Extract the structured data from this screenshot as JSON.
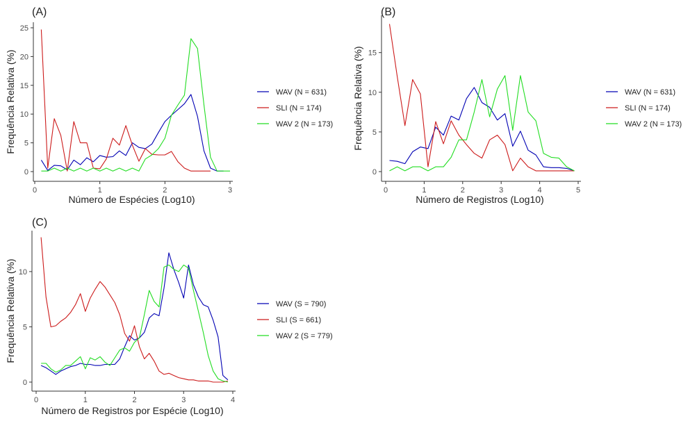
{
  "colors": {
    "wav": "#0000b3",
    "sli": "#cc1a1a",
    "wav2": "#22dd22",
    "axis": "#333333"
  },
  "chart_data": [
    {
      "type": "line",
      "panel_label": "(A)",
      "xlabel": "Número de Espécies (Log10)",
      "ylabel": "Frequência Relativa (%)",
      "xlim": [
        0,
        3
      ],
      "ylim": [
        0,
        25
      ],
      "xticks": [
        0,
        1,
        2,
        3
      ],
      "yticks": [
        0,
        5,
        10,
        15,
        20,
        25
      ],
      "legend_position": "right",
      "series": [
        {
          "name": "WAV (N = 631)",
          "color": "wav",
          "x": [
            0.1,
            0.2,
            0.3,
            0.4,
            0.5,
            0.6,
            0.7,
            0.8,
            0.9,
            1.0,
            1.1,
            1.2,
            1.3,
            1.4,
            1.5,
            1.6,
            1.7,
            1.8,
            1.9,
            2.0,
            2.1,
            2.2,
            2.3,
            2.4,
            2.5,
            2.6,
            2.7,
            2.8,
            2.9
          ],
          "y": [
            2.0,
            0.2,
            1.1,
            1.0,
            0.3,
            2.0,
            1.2,
            2.4,
            1.7,
            2.8,
            2.5,
            2.6,
            3.6,
            2.8,
            5.0,
            4.2,
            4.0,
            4.8,
            6.8,
            8.7,
            9.8,
            10.8,
            11.8,
            13.4,
            9.6,
            3.6,
            0.6,
            0.1,
            0.1
          ]
        },
        {
          "name": "SLI (N = 174)",
          "color": "sli",
          "x": [
            0.1,
            0.2,
            0.3,
            0.4,
            0.5,
            0.6,
            0.7,
            0.8,
            0.9,
            1.0,
            1.1,
            1.2,
            1.3,
            1.4,
            1.5,
            1.6,
            1.7,
            1.8,
            1.9,
            2.0,
            2.1,
            2.2,
            2.3,
            2.4,
            2.5,
            2.6,
            2.7
          ],
          "y": [
            24.7,
            0.6,
            9.2,
            6.3,
            0.1,
            8.7,
            5.0,
            5.0,
            0.6,
            0.5,
            2.2,
            5.8,
            4.6,
            8.0,
            4.6,
            1.8,
            4.0,
            3.0,
            2.9,
            2.9,
            3.5,
            1.7,
            0.6,
            0.1,
            0.1,
            0.1,
            0.1
          ]
        },
        {
          "name": "WAV 2 (N = 173)",
          "color": "wav2",
          "x": [
            0.1,
            0.2,
            0.3,
            0.4,
            0.5,
            0.6,
            0.7,
            0.8,
            0.9,
            1.0,
            1.1,
            1.2,
            1.3,
            1.4,
            1.5,
            1.6,
            1.7,
            1.8,
            1.9,
            2.0,
            2.1,
            2.2,
            2.3,
            2.4,
            2.5,
            2.6,
            2.7,
            2.8,
            2.9,
            3.0
          ],
          "y": [
            0.1,
            0.1,
            0.6,
            0.1,
            0.6,
            0.1,
            0.6,
            0.1,
            0.6,
            0.1,
            0.6,
            0.1,
            0.6,
            0.1,
            0.6,
            0.1,
            2.2,
            2.9,
            4.0,
            5.8,
            9.8,
            11.6,
            13.3,
            23.1,
            21.4,
            11.6,
            2.5,
            0.1,
            0.1,
            0.1
          ]
        }
      ]
    },
    {
      "type": "line",
      "panel_label": "(B)",
      "xlabel": "Número de Registros (Log10)",
      "ylabel": "Frequência Relativa (%)",
      "xlim": [
        0,
        5
      ],
      "ylim": [
        0,
        19
      ],
      "xticks": [
        0,
        1,
        2,
        3,
        4,
        5
      ],
      "yticks": [
        0,
        5,
        10,
        15
      ],
      "legend_position": "right",
      "series": [
        {
          "name": "WAV (N = 631)",
          "color": "wav",
          "x": [
            0.1,
            0.3,
            0.5,
            0.7,
            0.9,
            1.1,
            1.3,
            1.5,
            1.7,
            1.9,
            2.1,
            2.3,
            2.5,
            2.7,
            2.9,
            3.1,
            3.3,
            3.5,
            3.7,
            3.9,
            4.1,
            4.3,
            4.5,
            4.7,
            4.9
          ],
          "y": [
            1.4,
            1.3,
            1.0,
            2.5,
            3.1,
            2.9,
            5.6,
            4.6,
            7.0,
            6.5,
            9.2,
            10.6,
            8.7,
            8.1,
            6.5,
            7.3,
            3.2,
            5.1,
            2.7,
            2.1,
            0.6,
            0.5,
            0.5,
            0.4,
            0.1
          ]
        },
        {
          "name": "SLI (N = 174)",
          "color": "sli",
          "x": [
            0.1,
            0.3,
            0.5,
            0.7,
            0.9,
            1.1,
            1.3,
            1.5,
            1.7,
            1.9,
            2.1,
            2.3,
            2.5,
            2.7,
            2.9,
            3.1,
            3.3,
            3.5,
            3.7,
            3.9,
            4.1,
            4.3,
            4.5,
            4.7,
            4.9
          ],
          "y": [
            18.6,
            12.0,
            5.8,
            11.6,
            9.8,
            0.6,
            6.3,
            3.5,
            6.4,
            4.6,
            3.4,
            2.3,
            1.7,
            4.0,
            4.6,
            3.4,
            0.1,
            1.7,
            0.6,
            0.1,
            0.1,
            0.1,
            0.1,
            0.1,
            0.1
          ]
        },
        {
          "name": "WAV 2 (N = 173)",
          "color": "wav2",
          "x": [
            0.1,
            0.3,
            0.5,
            0.7,
            0.9,
            1.1,
            1.3,
            1.5,
            1.7,
            1.9,
            2.1,
            2.3,
            2.5,
            2.7,
            2.9,
            3.1,
            3.3,
            3.5,
            3.7,
            3.9,
            4.1,
            4.3,
            4.5,
            4.7,
            4.9
          ],
          "y": [
            0.1,
            0.6,
            0.1,
            0.6,
            0.6,
            0.1,
            0.6,
            0.6,
            1.8,
            4.0,
            4.0,
            7.5,
            11.6,
            6.9,
            10.4,
            12.1,
            5.2,
            12.1,
            7.5,
            6.4,
            2.3,
            1.8,
            1.7,
            0.6,
            0.1
          ]
        }
      ]
    },
    {
      "type": "line",
      "panel_label": "(C)",
      "xlabel": "Número de Registros por Espécie (Log10)",
      "ylabel": "Frequência Relativa (%)",
      "xlim": [
        0,
        4
      ],
      "ylim": [
        0,
        13.2
      ],
      "xticks": [
        0,
        1,
        2,
        3,
        4
      ],
      "yticks": [
        0,
        5,
        10
      ],
      "legend_position": "right",
      "series": [
        {
          "name": "WAV (S = 790)",
          "color": "wav",
          "x": [
            0.1,
            0.2,
            0.3,
            0.4,
            0.5,
            0.6,
            0.7,
            0.8,
            0.9,
            1.0,
            1.1,
            1.2,
            1.3,
            1.4,
            1.5,
            1.6,
            1.7,
            1.8,
            1.9,
            2.0,
            2.1,
            2.2,
            2.3,
            2.4,
            2.5,
            2.6,
            2.7,
            2.8,
            2.9,
            3.0,
            3.1,
            3.2,
            3.3,
            3.4,
            3.5,
            3.6,
            3.7,
            3.8,
            3.9
          ],
          "y": [
            1.5,
            1.3,
            1.0,
            0.7,
            1.0,
            1.2,
            1.4,
            1.5,
            1.7,
            1.6,
            1.6,
            1.5,
            1.5,
            1.6,
            1.6,
            1.6,
            2.1,
            3.2,
            4.2,
            3.8,
            4.0,
            4.5,
            5.8,
            6.2,
            6.0,
            8.5,
            11.7,
            10.2,
            9.0,
            7.6,
            10.6,
            8.8,
            7.7,
            7.0,
            6.8,
            5.6,
            4.1,
            0.6,
            0.2
          ]
        },
        {
          "name": "SLI (S = 661)",
          "color": "sli",
          "x": [
            0.1,
            0.2,
            0.3,
            0.4,
            0.5,
            0.6,
            0.7,
            0.8,
            0.9,
            1.0,
            1.1,
            1.2,
            1.3,
            1.4,
            1.5,
            1.6,
            1.7,
            1.8,
            1.9,
            2.0,
            2.1,
            2.2,
            2.3,
            2.4,
            2.5,
            2.6,
            2.7,
            2.8,
            2.9,
            3.0,
            3.1,
            3.2,
            3.3,
            3.4,
            3.5,
            3.6,
            3.7,
            3.8,
            3.9
          ],
          "y": [
            13.1,
            7.7,
            5.0,
            5.1,
            5.5,
            5.8,
            6.3,
            7.0,
            8.0,
            6.4,
            7.6,
            8.4,
            9.1,
            8.6,
            7.9,
            7.2,
            6.1,
            4.4,
            3.7,
            5.1,
            3.2,
            2.1,
            2.6,
            1.9,
            1.0,
            0.7,
            0.8,
            0.6,
            0.4,
            0.3,
            0.2,
            0.2,
            0.1,
            0.1,
            0.1,
            0.0,
            0.0,
            0.0,
            0.1
          ]
        },
        {
          "name": "WAV 2 (S = 779)",
          "color": "wav2",
          "x": [
            0.1,
            0.2,
            0.3,
            0.4,
            0.5,
            0.6,
            0.7,
            0.8,
            0.9,
            1.0,
            1.1,
            1.2,
            1.3,
            1.4,
            1.5,
            1.6,
            1.7,
            1.8,
            1.9,
            2.0,
            2.1,
            2.2,
            2.3,
            2.4,
            2.5,
            2.6,
            2.7,
            2.8,
            2.9,
            3.0,
            3.1,
            3.2,
            3.3,
            3.4,
            3.5,
            3.6,
            3.7,
            3.8,
            3.9
          ],
          "y": [
            1.7,
            1.7,
            1.2,
            0.9,
            1.1,
            1.5,
            1.5,
            1.9,
            2.3,
            1.2,
            2.2,
            2.0,
            2.3,
            1.8,
            1.5,
            2.2,
            2.9,
            3.1,
            2.8,
            3.6,
            4.0,
            6.1,
            8.3,
            7.3,
            6.8,
            10.4,
            10.6,
            10.2,
            10.0,
            10.6,
            10.3,
            8.3,
            6.4,
            4.5,
            2.4,
            1.0,
            0.3,
            0.1,
            0.0
          ]
        }
      ]
    }
  ]
}
